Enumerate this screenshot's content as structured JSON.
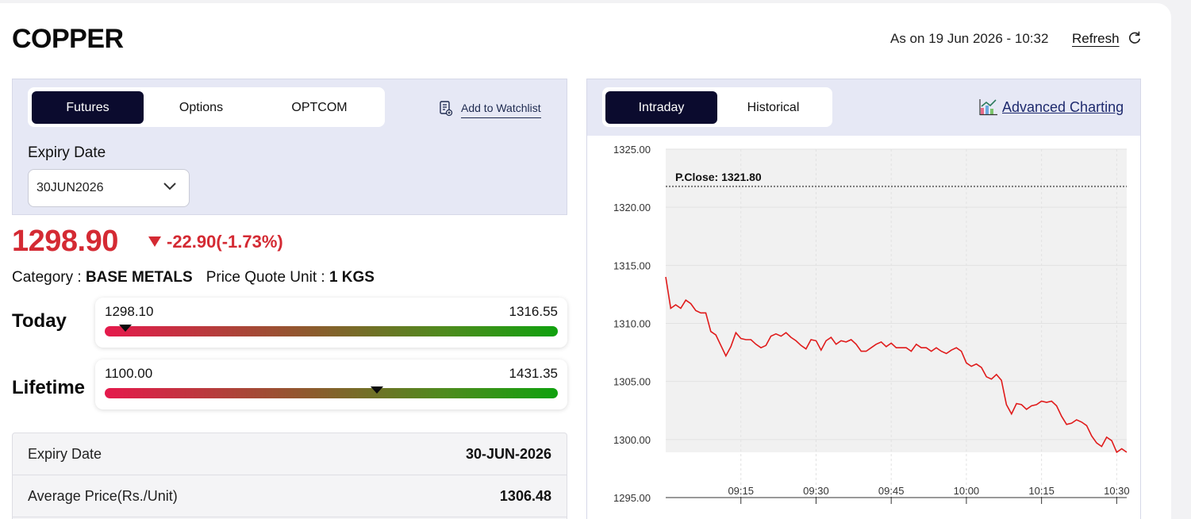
{
  "header": {
    "title": "COPPER",
    "as_on": "As on 19 Jun 2026 - 10:32",
    "refresh_label": "Refresh",
    "refresh_icon": "refresh-icon"
  },
  "instrument_tabs": [
    "Futures",
    "Options",
    "OPTCOM"
  ],
  "active_instrument_tab": "Futures",
  "watchlist": {
    "label": "Add to Watchlist",
    "icon": "watchlist-icon"
  },
  "expiry": {
    "label": "Expiry Date",
    "selected": "30JUN2026"
  },
  "quote": {
    "price": "1298.90",
    "change": "-22.90(-1.73%)",
    "direction": "down",
    "color": "#d42a33"
  },
  "category": {
    "label": "Category : ",
    "value": "BASE METALS",
    "unit_label": "Price Quote Unit : ",
    "unit_value": "1 KGS"
  },
  "ranges": {
    "today": {
      "label": "Today",
      "low": "1298.10",
      "high": "1316.55",
      "marker_fraction": 0.045
    },
    "lifetime": {
      "label": "Lifetime",
      "low": "1100.00",
      "high": "1431.35",
      "marker_fraction": 0.6
    }
  },
  "details": [
    {
      "key": "Expiry Date",
      "value": "30-JUN-2026"
    },
    {
      "key": "Average Price(Rs./Unit)",
      "value": "1306.48"
    }
  ],
  "chart_tabs": [
    "Intraday",
    "Historical"
  ],
  "active_chart_tab": "Intraday",
  "advanced_charting": {
    "label": "Advanced Charting",
    "icon": "chart-icon"
  },
  "chart_data": {
    "type": "line",
    "ylim": [
      1295,
      1325
    ],
    "y_ticks": [
      "1325.00",
      "1320.00",
      "1315.00",
      "1310.00",
      "1305.00",
      "1300.00",
      "1295.00"
    ],
    "x_ticks": [
      "09:15",
      "09:30",
      "09:45",
      "10:00",
      "10:15",
      "10:30"
    ],
    "x_tick_minutes": [
      15,
      30,
      45,
      60,
      75,
      90
    ],
    "xlim_minutes": [
      0,
      92
    ],
    "reference_line": {
      "label": "P.Close: 1321.80",
      "value": 1321.8
    },
    "series_color": "#e01b1b",
    "series": [
      {
        "x": [
          0,
          1,
          2,
          3,
          4,
          5,
          6,
          7,
          8,
          9,
          10,
          11,
          12,
          13,
          14,
          15,
          16,
          17,
          18,
          19,
          20,
          21,
          22,
          23,
          24,
          25,
          26,
          27,
          28,
          29,
          30,
          31,
          32,
          33,
          34,
          35,
          36,
          37,
          38,
          39,
          40,
          41,
          42,
          43,
          44,
          45,
          46,
          47,
          48,
          49,
          50,
          51,
          52,
          53,
          54,
          55,
          56,
          57,
          58,
          59,
          60,
          61,
          62,
          63,
          64,
          65,
          66,
          67,
          68,
          69,
          70,
          71,
          72,
          73,
          74,
          75,
          76,
          77,
          78,
          79,
          80,
          81,
          82,
          83,
          84,
          85,
          86,
          87,
          88,
          89,
          90,
          91,
          92
        ],
        "values": [
          1314.0,
          1311.3,
          1311.6,
          1311.3,
          1312.0,
          1311.7,
          1311.1,
          1310.9,
          1310.9,
          1309.3,
          1309.0,
          1308.1,
          1307.2,
          1308.0,
          1309.2,
          1308.7,
          1308.6,
          1308.6,
          1308.2,
          1307.9,
          1308.1,
          1308.9,
          1309.1,
          1308.9,
          1309.2,
          1308.8,
          1308.5,
          1308.1,
          1307.8,
          1308.6,
          1308.5,
          1307.7,
          1308.5,
          1308.8,
          1308.2,
          1308.5,
          1308.4,
          1308.6,
          1308.2,
          1307.6,
          1307.6,
          1307.9,
          1308.2,
          1308.4,
          1308.0,
          1308.3,
          1307.9,
          1307.9,
          1307.9,
          1307.6,
          1308.2,
          1307.9,
          1307.9,
          1307.6,
          1307.9,
          1307.6,
          1307.4,
          1307.7,
          1307.9,
          1307.6,
          1306.6,
          1306.3,
          1306.5,
          1306.2,
          1305.4,
          1305.2,
          1305.6,
          1305.1,
          1303.0,
          1302.2,
          1303.1,
          1303.0,
          1302.6,
          1302.9,
          1303.0,
          1303.3,
          1303.2,
          1303.3,
          1302.9,
          1302.0,
          1301.3,
          1301.4,
          1301.7,
          1301.5,
          1301.2,
          1300.3,
          1299.7,
          1299.4,
          1300.2,
          1299.9,
          1298.9,
          1299.2,
          1298.9
        ]
      }
    ]
  }
}
